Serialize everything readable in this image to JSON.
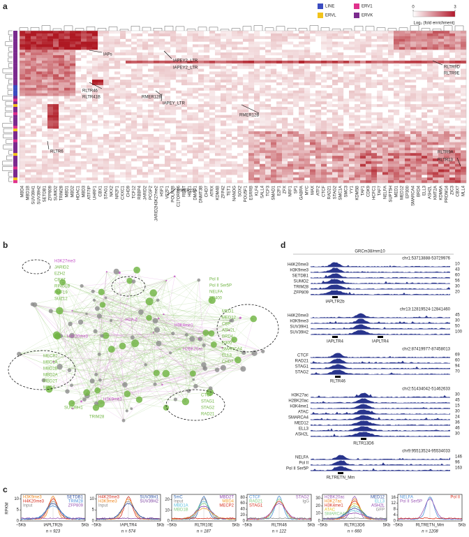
{
  "panel_a": {
    "label": "a",
    "legend": [
      {
        "name": "LINE",
        "color": "#3b4cc0"
      },
      {
        "name": "ERVL",
        "color": "#f2c31b"
      },
      {
        "name": "ERV1",
        "color": "#e0318c"
      },
      {
        "name": "ERVK",
        "color": "#7b2a8e"
      }
    ],
    "colorbar": {
      "ticks": [
        0,
        3
      ],
      "title": "Log₂ (fold enrichment)"
    },
    "columns": [
      "MBD4",
      "MBD1B",
      "SUV39H1",
      "SUV39H2",
      "SETDB1",
      "ZFP809",
      "SUMO2",
      "TRIM28",
      "MBD1",
      "MBD2",
      "HDAC1",
      "MBD3",
      "ATF7IP",
      "UHRF1",
      "CBX1",
      "STAG1",
      "NKX2",
      "NR2F1",
      "CXXC1",
      "CHD9",
      "TCF12",
      "RBBP4",
      "JARID2",
      "PCGF2",
      "JARID2H3K27me2",
      "HSF1",
      "VEZF1",
      "POLR2B",
      "C17ORF96",
      "REST",
      "HEY1",
      "DMAP1",
      "DNMT3B",
      "CHD7",
      "ATRX",
      "KDM4B",
      "ZFP42",
      "TET1",
      "NANOG",
      "SOX2",
      "POU5F1",
      "ESRRB",
      "KLF4",
      "SALL4",
      "TCF3",
      "SMAD1",
      "E2F1",
      "ZFX",
      "NRF1",
      "SP1",
      "GABPA",
      "MYC",
      "MAX",
      "ATF2",
      "CTCF",
      "RAD21",
      "STAG2",
      "SMC1A",
      "SMC3",
      "YY1",
      "KDM5B",
      "TAF1",
      "CDK9",
      "HCFC1",
      "TAF7",
      "NELFA",
      "SUPT5H",
      "MED1",
      "MED12",
      "EP300",
      "SMARCA4",
      "BRD4",
      "ELL3",
      "ASH2L",
      "KMT2A",
      "KDM6A",
      "PRDM14",
      "ZIC3",
      "CBX7",
      "MLL4"
    ],
    "annotations": [
      "IAPs",
      "IAPEY2_LTR",
      "IAPEY2_LTR",
      "RLTR9D",
      "RLTR9E",
      "RLTR46",
      "RLTR41B",
      "RMER12B",
      "IAPEY_LTR",
      "RMER12B",
      "RLTR6",
      "RLTR9A",
      "RLTR13",
      "RMER21A"
    ]
  },
  "panel_b": {
    "label": "b",
    "colors": {
      "factor": "#6db33f",
      "histone": "#c553c8",
      "node": "#8c8c8c"
    },
    "labels": [
      {
        "text": "H3K27me3",
        "kind": "histone"
      },
      {
        "text": "JARID2",
        "kind": "factor"
      },
      {
        "text": "EZH2",
        "kind": "factor"
      },
      {
        "text": "CBX7",
        "kind": "factor"
      },
      {
        "text": "RING1B",
        "kind": "factor"
      },
      {
        "text": "PHF19",
        "kind": "factor"
      },
      {
        "text": "SUZ12",
        "kind": "factor"
      },
      {
        "text": "Pol II",
        "kind": "factor"
      },
      {
        "text": "Pol II Ser5P",
        "kind": "factor"
      },
      {
        "text": "NELFA",
        "kind": "factor"
      },
      {
        "text": "EP400",
        "kind": "factor"
      },
      {
        "text": "MED1",
        "kind": "factor"
      },
      {
        "text": "MED12",
        "kind": "factor"
      },
      {
        "text": "CBP",
        "kind": "factor"
      },
      {
        "text": "ASH2L",
        "kind": "factor"
      },
      {
        "text": "BRD4",
        "kind": "factor"
      },
      {
        "text": "P300",
        "kind": "factor"
      },
      {
        "text": "SMARCA4",
        "kind": "factor"
      },
      {
        "text": "ELL3",
        "kind": "factor"
      },
      {
        "text": "CHD7",
        "kind": "factor"
      },
      {
        "text": "MECP2",
        "kind": "factor"
      },
      {
        "text": "MBD1A",
        "kind": "factor"
      },
      {
        "text": "MBD1B",
        "kind": "factor"
      },
      {
        "text": "MBD2A",
        "kind": "factor"
      },
      {
        "text": "MBD2T",
        "kind": "factor"
      },
      {
        "text": "MBD4",
        "kind": "factor"
      },
      {
        "text": "CTCF",
        "kind": "factor"
      },
      {
        "text": "STAG1",
        "kind": "factor"
      },
      {
        "text": "STAG2",
        "kind": "factor"
      },
      {
        "text": "RAD21",
        "kind": "factor"
      },
      {
        "text": "SUV39H1",
        "kind": "factor"
      },
      {
        "text": "TRIM28",
        "kind": "factor"
      },
      {
        "text": "H3K9me3",
        "kind": "histone"
      },
      {
        "text": "H2A.Z",
        "kind": "histone"
      },
      {
        "text": "H3K4me1",
        "kind": "histone"
      },
      {
        "text": "H2BK20ac",
        "kind": "histone"
      },
      {
        "text": "H4K20me3",
        "kind": "histone"
      }
    ]
  },
  "panel_d": {
    "label": "d",
    "assembly": "GRCm38/mm10",
    "signal_color": "#28348c",
    "groups": [
      {
        "region": "chr1:53713888-53729976",
        "tracks": [
          {
            "name": "H4K20me3",
            "max": 10
          },
          {
            "name": "H3K9me3",
            "max": 43
          },
          {
            "name": "SETDB1",
            "max": 60
          },
          {
            "name": "SUMO2",
            "max": 56
          },
          {
            "name": "TRIM28",
            "max": 30
          },
          {
            "name": "ZFP809",
            "max": 20
          }
        ],
        "genes": [
          "IAPLTR2b"
        ]
      },
      {
        "region": "chr13:12819524-12841460",
        "tracks": [
          {
            "name": "H4K20me3",
            "max": 45
          },
          {
            "name": "H3K9me3",
            "max": 30
          },
          {
            "name": "SUV39H1",
            "max": 50
          },
          {
            "name": "SUV39H2",
            "max": 100
          }
        ],
        "genes": [
          "IAPLTR4",
          "IAPLTR4"
        ]
      },
      {
        "region": "chr2:87419977-87458013",
        "tracks": [
          {
            "name": "CTCF",
            "max": 69
          },
          {
            "name": "RAD21",
            "max": 60
          },
          {
            "name": "STAG1",
            "max": 94
          },
          {
            "name": "STAG2",
            "max": 70
          }
        ],
        "genes": [
          "RLTR46"
        ]
      },
      {
        "region": "chr2:51434042-51462633",
        "tracks": [
          {
            "name": "H3K27ac",
            "max": 30
          },
          {
            "name": "H2BK20ac",
            "max": 45
          },
          {
            "name": "H3K4me1",
            "max": 15
          },
          {
            "name": "ATAC",
            "max": 30
          },
          {
            "name": "SMARCA4",
            "max": 24
          },
          {
            "name": "MED12",
            "max": 36
          },
          {
            "name": "ELL3",
            "max": 46
          },
          {
            "name": "ASH2L",
            "max": 30
          }
        ],
        "genes": [
          "RLTR13D6"
        ]
      },
      {
        "region": "chr9:95513524-95534033",
        "tracks": [
          {
            "name": "NELFA",
            "max": 146
          },
          {
            "name": "Pol II",
            "max": 96
          },
          {
            "name": "Pol II Ser5P",
            "max": 163
          }
        ],
        "genes": [
          "RLTRETN_Mm"
        ]
      }
    ]
  },
  "panel_c": {
    "label": "c",
    "ylabel": "RPKM",
    "xstart": "−5Kb",
    "xend": "5Kb",
    "plots": [
      {
        "element": "IAPLTR2b",
        "n": "n = 923",
        "ylim": [
          0,
          12
        ],
        "yticks": [
          0,
          5,
          10
        ],
        "series": [
          {
            "name": "H3K9me3",
            "color": "#f08a24"
          },
          {
            "name": "H4K20me3",
            "color": "#d7301f"
          },
          {
            "name": "Input",
            "color": "#888888"
          },
          {
            "name": "SETDB1",
            "color": "#2c4fa3"
          },
          {
            "name": "TRIM28",
            "color": "#4a90d9"
          },
          {
            "name": "ZFP809",
            "color": "#9b59b6"
          }
        ]
      },
      {
        "element": "IAPLTR4",
        "n": "n = 574",
        "ylim": [
          0,
          12
        ],
        "yticks": [
          0,
          5,
          10
        ],
        "series": [
          {
            "name": "H4K20me3",
            "color": "#d7301f"
          },
          {
            "name": "H3K9me3",
            "color": "#f08a24"
          },
          {
            "name": "Input",
            "color": "#888888"
          },
          {
            "name": "SUV39H1",
            "color": "#2c4fa3"
          },
          {
            "name": "SUV39H2",
            "color": "#7b3fa0"
          }
        ]
      },
      {
        "element": "RLTR10E",
        "n": "n = 187",
        "ylim": [
          0,
          25
        ],
        "yticks": [
          0,
          10,
          20
        ],
        "series": [
          {
            "name": "5mC",
            "color": "#3b6fb6"
          },
          {
            "name": "Input",
            "color": "#888888"
          },
          {
            "name": "MBD1A",
            "color": "#5bc0de"
          },
          {
            "name": "MBD1B",
            "color": "#7fc97f"
          },
          {
            "name": "MBD2T",
            "color": "#8e44ad"
          },
          {
            "name": "MBD4",
            "color": "#f0a030"
          },
          {
            "name": "MECP2",
            "color": "#d7301f"
          }
        ]
      },
      {
        "element": "RLTR46",
        "n": "n = 122",
        "ylim": [
          0,
          90
        ],
        "yticks": [
          0,
          20,
          40,
          60,
          80
        ],
        "series": [
          {
            "name": "CTCF",
            "color": "#4a90d9"
          },
          {
            "name": "RAD21",
            "color": "#7fc97f"
          },
          {
            "name": "STAG1",
            "color": "#d7301f"
          },
          {
            "name": "STAG2",
            "color": "#9b59b6"
          },
          {
            "name": "IgG",
            "color": "#888888"
          }
        ]
      },
      {
        "element": "RLTR13D6",
        "n": "n = 660",
        "ylim": [
          0,
          35
        ],
        "yticks": [
          0,
          10,
          20,
          30
        ],
        "series": [
          {
            "name": "H2BK20ac",
            "color": "#9b59b6"
          },
          {
            "name": "H3K27ac",
            "color": "#f08a24"
          },
          {
            "name": "H3K4me1",
            "color": "#d7301f"
          },
          {
            "name": "ATAC",
            "color": "#e6c229"
          },
          {
            "name": "SMARCA4",
            "color": "#7fc97f"
          },
          {
            "name": "MED12",
            "color": "#2c4fa3"
          },
          {
            "name": "ELL3",
            "color": "#5bc0de"
          },
          {
            "name": "ASH2L",
            "color": "#8e44ad"
          },
          {
            "name": "GFP",
            "color": "#888888"
          }
        ]
      },
      {
        "element": "RLTRETN_Mm",
        "n": "n = 1208",
        "ylim": [
          0,
          18
        ],
        "yticks": [
          0,
          4,
          8,
          12,
          16
        ],
        "series": [
          {
            "name": "NELFA",
            "color": "#4a90d9"
          },
          {
            "name": "Pol II Ser5P",
            "color": "#9b59b6"
          },
          {
            "name": "Pol II",
            "color": "#d7301f"
          }
        ]
      }
    ]
  }
}
